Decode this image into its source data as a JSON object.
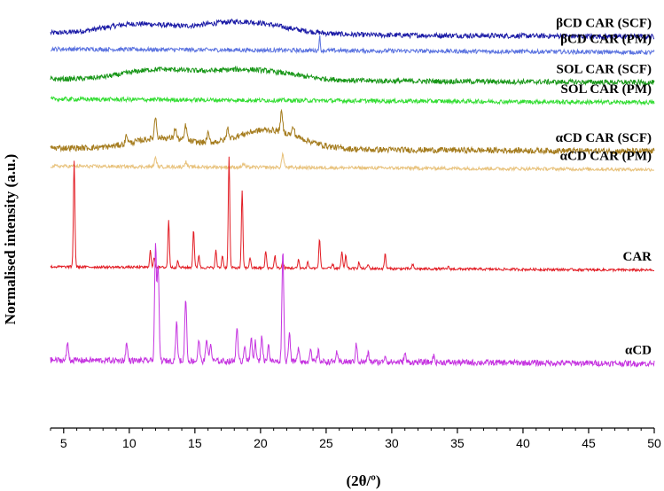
{
  "chart_data": {
    "type": "line",
    "title": "",
    "xlabel": "(2θ/º)",
    "ylabel": "Normalised intensity (a.u.)",
    "xlim": [
      4,
      50
    ],
    "xticks": [
      5,
      10,
      15,
      20,
      25,
      30,
      35,
      40,
      45,
      50
    ],
    "grid": false,
    "legend": "none",
    "series": [
      {
        "name": "βCD CAR (SCF)",
        "color": "#1a1aa6",
        "baseline": 0.93,
        "noise": 0.006,
        "humps": [
          {
            "x": 10.5,
            "h": 0.022,
            "w": 3.5
          },
          {
            "x": 18.5,
            "h": 0.03,
            "w": 4.5
          }
        ],
        "peaks": []
      },
      {
        "name": "βCD CAR (PM)",
        "color": "#5b73e0",
        "baseline": 0.893,
        "noise": 0.005,
        "humps": [],
        "peaks": [
          {
            "x": 24.5,
            "h": 0.035,
            "w": 0.06
          }
        ]
      },
      {
        "name": "SOL CAR (SCF)",
        "color": "#179617",
        "baseline": 0.822,
        "noise": 0.006,
        "humps": [
          {
            "x": 12.0,
            "h": 0.022,
            "w": 3.5
          },
          {
            "x": 19.0,
            "h": 0.025,
            "w": 4.5
          }
        ],
        "peaks": []
      },
      {
        "name": "SOL CAR (PM)",
        "color": "#33dd33",
        "baseline": 0.775,
        "noise": 0.005,
        "humps": [],
        "peaks": []
      },
      {
        "name": "αCD CAR (SCF)",
        "color": "#a57c1e",
        "baseline": 0.66,
        "noise": 0.007,
        "humps": [
          {
            "x": 12.5,
            "h": 0.025,
            "w": 3.0
          },
          {
            "x": 20.5,
            "h": 0.045,
            "w": 3.5
          }
        ],
        "peaks": [
          {
            "x": 9.8,
            "h": 0.02,
            "w": 0.12
          },
          {
            "x": 12.0,
            "h": 0.05,
            "w": 0.12
          },
          {
            "x": 13.5,
            "h": 0.025,
            "w": 0.12
          },
          {
            "x": 14.3,
            "h": 0.035,
            "w": 0.12
          },
          {
            "x": 16.0,
            "h": 0.02,
            "w": 0.12
          },
          {
            "x": 17.5,
            "h": 0.025,
            "w": 0.12
          },
          {
            "x": 21.6,
            "h": 0.045,
            "w": 0.12
          },
          {
            "x": 22.5,
            "h": 0.02,
            "w": 0.12
          }
        ]
      },
      {
        "name": "αCD CAR (PM)",
        "color": "#e8c27c",
        "baseline": 0.617,
        "noise": 0.004,
        "humps": [],
        "peaks": [
          {
            "x": 12.0,
            "h": 0.02,
            "w": 0.12
          },
          {
            "x": 14.3,
            "h": 0.012,
            "w": 0.12
          },
          {
            "x": 18.7,
            "h": 0.008,
            "w": 0.12
          },
          {
            "x": 21.7,
            "h": 0.03,
            "w": 0.12
          }
        ]
      },
      {
        "name": "CAR",
        "color": "#e21b23",
        "baseline": 0.38,
        "noise": 0.003,
        "humps": [],
        "peaks": [
          {
            "x": 5.8,
            "h": 0.25,
            "w": 0.08
          },
          {
            "x": 11.6,
            "h": 0.04,
            "w": 0.08
          },
          {
            "x": 11.9,
            "h": 0.025,
            "w": 0.08
          },
          {
            "x": 13.0,
            "h": 0.11,
            "w": 0.08
          },
          {
            "x": 13.7,
            "h": 0.015,
            "w": 0.08
          },
          {
            "x": 14.9,
            "h": 0.09,
            "w": 0.08
          },
          {
            "x": 15.3,
            "h": 0.03,
            "w": 0.08
          },
          {
            "x": 16.6,
            "h": 0.04,
            "w": 0.08
          },
          {
            "x": 17.1,
            "h": 0.03,
            "w": 0.08
          },
          {
            "x": 17.6,
            "h": 0.26,
            "w": 0.08
          },
          {
            "x": 18.6,
            "h": 0.18,
            "w": 0.08
          },
          {
            "x": 19.2,
            "h": 0.025,
            "w": 0.08
          },
          {
            "x": 20.4,
            "h": 0.04,
            "w": 0.08
          },
          {
            "x": 21.1,
            "h": 0.03,
            "w": 0.08
          },
          {
            "x": 21.7,
            "h": 0.015,
            "w": 0.08
          },
          {
            "x": 22.9,
            "h": 0.02,
            "w": 0.08
          },
          {
            "x": 23.6,
            "h": 0.015,
            "w": 0.08
          },
          {
            "x": 24.5,
            "h": 0.07,
            "w": 0.08
          },
          {
            "x": 25.5,
            "h": 0.01,
            "w": 0.08
          },
          {
            "x": 26.2,
            "h": 0.04,
            "w": 0.08
          },
          {
            "x": 26.5,
            "h": 0.03,
            "w": 0.08
          },
          {
            "x": 27.5,
            "h": 0.015,
            "w": 0.08
          },
          {
            "x": 28.2,
            "h": 0.01,
            "w": 0.08
          },
          {
            "x": 29.5,
            "h": 0.035,
            "w": 0.08
          },
          {
            "x": 31.6,
            "h": 0.01,
            "w": 0.08
          },
          {
            "x": 34.3,
            "h": 0.005,
            "w": 0.08
          }
        ]
      },
      {
        "name": "αCD",
        "color": "#c533e0",
        "baseline": 0.16,
        "noise": 0.007,
        "humps": [],
        "peaks": [
          {
            "x": 5.3,
            "h": 0.04,
            "w": 0.1
          },
          {
            "x": 9.8,
            "h": 0.04,
            "w": 0.1
          },
          {
            "x": 12.0,
            "h": 0.27,
            "w": 0.1
          },
          {
            "x": 12.2,
            "h": 0.22,
            "w": 0.1
          },
          {
            "x": 13.6,
            "h": 0.09,
            "w": 0.1
          },
          {
            "x": 14.3,
            "h": 0.15,
            "w": 0.1
          },
          {
            "x": 15.3,
            "h": 0.05,
            "w": 0.1
          },
          {
            "x": 15.9,
            "h": 0.055,
            "w": 0.1
          },
          {
            "x": 16.2,
            "h": 0.04,
            "w": 0.1
          },
          {
            "x": 18.2,
            "h": 0.08,
            "w": 0.1
          },
          {
            "x": 18.8,
            "h": 0.04,
            "w": 0.1
          },
          {
            "x": 19.3,
            "h": 0.055,
            "w": 0.1
          },
          {
            "x": 19.6,
            "h": 0.045,
            "w": 0.1
          },
          {
            "x": 20.1,
            "h": 0.06,
            "w": 0.1
          },
          {
            "x": 20.6,
            "h": 0.04,
            "w": 0.1
          },
          {
            "x": 21.7,
            "h": 0.26,
            "w": 0.1
          },
          {
            "x": 22.2,
            "h": 0.07,
            "w": 0.1
          },
          {
            "x": 22.9,
            "h": 0.035,
            "w": 0.1
          },
          {
            "x": 23.8,
            "h": 0.03,
            "w": 0.1
          },
          {
            "x": 24.4,
            "h": 0.025,
            "w": 0.1
          },
          {
            "x": 25.8,
            "h": 0.02,
            "w": 0.1
          },
          {
            "x": 27.3,
            "h": 0.04,
            "w": 0.1
          },
          {
            "x": 28.2,
            "h": 0.02,
            "w": 0.1
          },
          {
            "x": 29.5,
            "h": 0.015,
            "w": 0.1
          },
          {
            "x": 31.0,
            "h": 0.02,
            "w": 0.1
          },
          {
            "x": 33.2,
            "h": 0.015,
            "w": 0.1
          }
        ]
      }
    ]
  }
}
